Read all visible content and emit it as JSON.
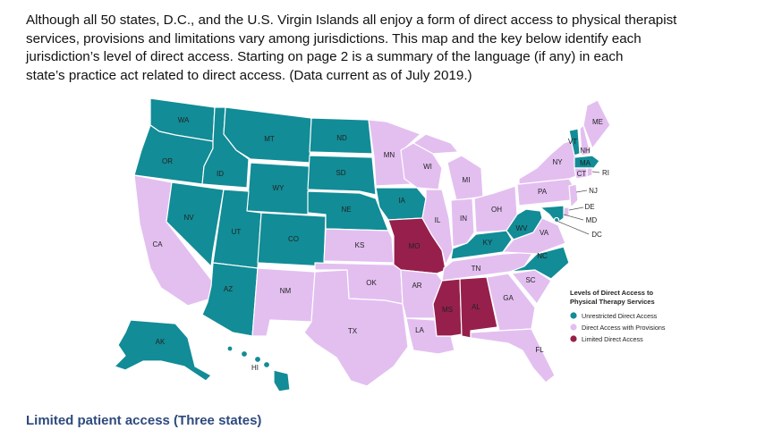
{
  "intro_lines": [
    "Although all 50 states, D.C., and the U.S. Virgin Islands all enjoy a form of direct access to physical therapist",
    "services, provisions and limitations vary among jurisdictions. This map and the key below identify each",
    "jurisdiction’s level of direct access. Starting on page 2 is a summary of the language (if any) in each",
    "state’s practice act related to direct access. (Data current as of July 2019.)"
  ],
  "colors": {
    "unrestricted": "#128c96",
    "provisions": "#e3bff0",
    "limited": "#96204b"
  },
  "states": {
    "WA": "WA",
    "OR": "OR",
    "CA": "CA",
    "ID": "ID",
    "NV": "NV",
    "MT": "MT",
    "WY": "WY",
    "UT": "UT",
    "AZ": "AZ",
    "CO": "CO",
    "NM": "NM",
    "ND": "ND",
    "SD": "SD",
    "NE": "NE",
    "KS": "KS",
    "OK": "OK",
    "TX": "TX",
    "MN": "MN",
    "IA": "IA",
    "MO": "MO",
    "AR": "AR",
    "LA": "LA",
    "WI": "WI",
    "IL": "IL",
    "MI": "MI",
    "IN": "IN",
    "OH": "OH",
    "KY": "KY",
    "TN": "TN",
    "MS": "MS",
    "AL": "AL",
    "GA": "GA",
    "FL": "FL",
    "SC": "SC",
    "NC": "NC",
    "VA": "VA",
    "WV": "WV",
    "PA": "PA",
    "NY": "NY",
    "VT": "VT",
    "NH": "NH",
    "ME": "ME",
    "MA": "MA",
    "RI": "RI",
    "CT": "CT",
    "NJ": "NJ",
    "DE": "DE",
    "MD": "MD",
    "DC": "DC",
    "AK": "AK",
    "HI": "HI"
  },
  "legend": {
    "title_line1": "Levels of Direct Access to",
    "title_line2": "Physical Therapy Services",
    "items": [
      "Unrestricted Direct Access",
      "Direct Access with Provisions",
      "Limited Direct Access"
    ]
  },
  "section_heading": "Limited patient access (Three states)"
}
